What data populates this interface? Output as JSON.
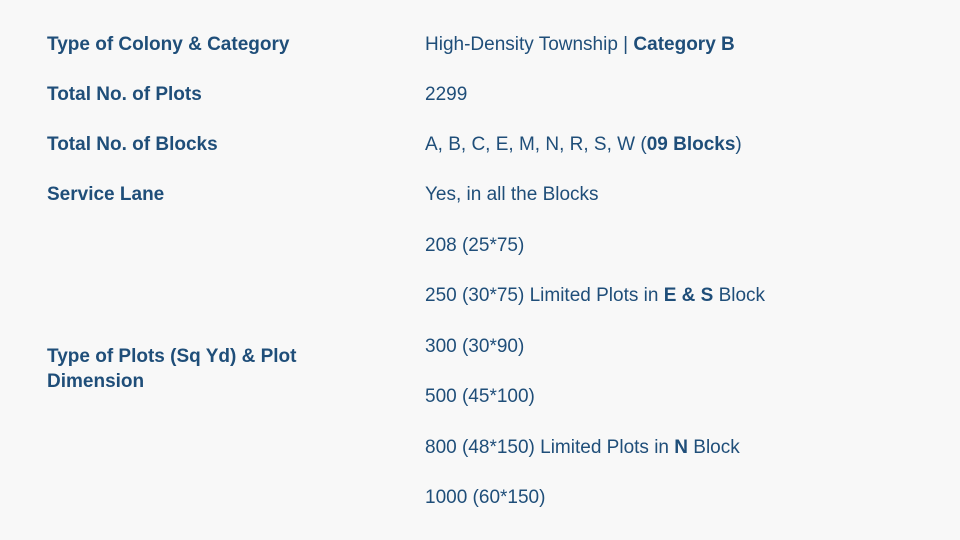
{
  "rows": [
    {
      "label": "Type of Colony & Category",
      "value": {
        "a": "High-Density Township | ",
        "b": "Category B"
      }
    },
    {
      "label": "Total No. of Plots",
      "value": {
        "a": "2299"
      }
    },
    {
      "label": "Total No. of Blocks",
      "value": {
        "a": "A, B, C, E, M, N, R, S, W (",
        "b": "09 Blocks",
        "c": ")"
      }
    },
    {
      "label": "Service Lane",
      "value": {
        "a": "Yes, in all the Blocks"
      }
    }
  ],
  "plots": {
    "label": "Type of Plots (Sq Yd) & Plot Dimension",
    "items": [
      {
        "a": "208 (25*75)"
      },
      {
        "a": "250 (30*75) Limited Plots in ",
        "b": "E & S",
        "c": " Block"
      },
      {
        "a": "300 (30*90)"
      },
      {
        "a": "500 (45*100)"
      },
      {
        "a": "800 (48*150) Limited Plots in ",
        "b": "N",
        "c": " Block"
      },
      {
        "a": "1000 (60*150)"
      }
    ]
  }
}
